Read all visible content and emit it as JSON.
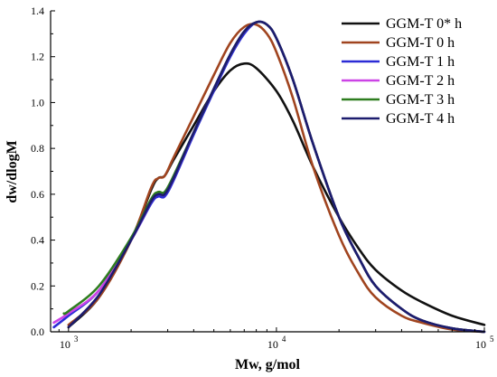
{
  "chart_data": {
    "type": "line",
    "xlabel": "Mw, g/mol",
    "ylabel": "dw/dlogM",
    "xscale": "log",
    "xlim": [
      820,
      100000
    ],
    "ylim": [
      0,
      1.4
    ],
    "x_ticks": [
      {
        "value": 1000,
        "base": "10",
        "exp": "3"
      },
      {
        "value": 10000,
        "base": "10",
        "exp": "4"
      },
      {
        "value": 100000,
        "base": "10",
        "exp": "5"
      }
    ],
    "y_ticks": [
      "0.0",
      "0.2",
      "0.4",
      "0.6",
      "0.8",
      "1.0",
      "1.2",
      "1.4"
    ],
    "grid": false,
    "legend_position": "top-right",
    "series": [
      {
        "name": "GGM-T 0* h",
        "color": "#111111",
        "points": [
          [
            1000,
            0.02
          ],
          [
            1400,
            0.15
          ],
          [
            2000,
            0.4
          ],
          [
            2500,
            0.62
          ],
          [
            2700,
            0.67
          ],
          [
            2900,
            0.68
          ],
          [
            3200,
            0.75
          ],
          [
            4000,
            0.9
          ],
          [
            5000,
            1.05
          ],
          [
            6000,
            1.14
          ],
          [
            7000,
            1.17
          ],
          [
            8000,
            1.15
          ],
          [
            10000,
            1.05
          ],
          [
            12000,
            0.92
          ],
          [
            15000,
            0.72
          ],
          [
            20000,
            0.5
          ],
          [
            25000,
            0.36
          ],
          [
            30000,
            0.27
          ],
          [
            40000,
            0.18
          ],
          [
            50000,
            0.13
          ],
          [
            70000,
            0.07
          ],
          [
            100000,
            0.03
          ]
        ]
      },
      {
        "name": "GGM-T 0 h",
        "color": "#a0441f",
        "points": [
          [
            1000,
            0.03
          ],
          [
            1400,
            0.15
          ],
          [
            2000,
            0.4
          ],
          [
            2500,
            0.63
          ],
          [
            2700,
            0.67
          ],
          [
            2900,
            0.68
          ],
          [
            3200,
            0.76
          ],
          [
            4000,
            0.94
          ],
          [
            5000,
            1.12
          ],
          [
            6000,
            1.26
          ],
          [
            7000,
            1.33
          ],
          [
            8000,
            1.34
          ],
          [
            9000,
            1.3
          ],
          [
            10000,
            1.22
          ],
          [
            12000,
            1.02
          ],
          [
            15000,
            0.72
          ],
          [
            20000,
            0.42
          ],
          [
            25000,
            0.25
          ],
          [
            30000,
            0.15
          ],
          [
            40000,
            0.07
          ],
          [
            50000,
            0.04
          ],
          [
            70000,
            0.01
          ],
          [
            100000,
            0.0
          ]
        ]
      },
      {
        "name": "GGM-T 1 h",
        "color": "#2b2bd6",
        "points": [
          [
            850,
            0.02
          ],
          [
            1000,
            0.07
          ],
          [
            1400,
            0.18
          ],
          [
            2000,
            0.4
          ],
          [
            2500,
            0.56
          ],
          [
            2700,
            0.59
          ],
          [
            2900,
            0.59
          ],
          [
            3200,
            0.66
          ],
          [
            4000,
            0.86
          ],
          [
            5000,
            1.05
          ],
          [
            6000,
            1.2
          ],
          [
            7000,
            1.3
          ],
          [
            8000,
            1.35
          ],
          [
            9000,
            1.34
          ],
          [
            10000,
            1.28
          ],
          [
            12000,
            1.1
          ],
          [
            15000,
            0.82
          ],
          [
            20000,
            0.5
          ],
          [
            25000,
            0.32
          ],
          [
            30000,
            0.2
          ],
          [
            40000,
            0.1
          ],
          [
            50000,
            0.05
          ],
          [
            70000,
            0.015
          ],
          [
            100000,
            0.0
          ]
        ]
      },
      {
        "name": "GGM-T 2 h",
        "color": "#cc44e6",
        "points": [
          [
            850,
            0.04
          ],
          [
            1000,
            0.08
          ],
          [
            1400,
            0.18
          ],
          [
            2000,
            0.4
          ],
          [
            2500,
            0.57
          ],
          [
            2700,
            0.6
          ],
          [
            2900,
            0.6
          ],
          [
            3200,
            0.67
          ],
          [
            4000,
            0.87
          ],
          [
            5000,
            1.06
          ],
          [
            6000,
            1.21
          ],
          [
            7000,
            1.31
          ],
          [
            8000,
            1.35
          ],
          [
            9000,
            1.34
          ],
          [
            10000,
            1.28
          ],
          [
            12000,
            1.1
          ],
          [
            15000,
            0.82
          ],
          [
            20000,
            0.5
          ],
          [
            25000,
            0.32
          ],
          [
            30000,
            0.2
          ],
          [
            40000,
            0.1
          ],
          [
            50000,
            0.05
          ],
          [
            70000,
            0.015
          ],
          [
            100000,
            0.0
          ]
        ]
      },
      {
        "name": "GGM-T 3 h",
        "color": "#2e7d1f",
        "points": [
          [
            950,
            0.08
          ],
          [
            1000,
            0.09
          ],
          [
            1400,
            0.2
          ],
          [
            2000,
            0.41
          ],
          [
            2500,
            0.58
          ],
          [
            2700,
            0.61
          ],
          [
            2900,
            0.61
          ],
          [
            3200,
            0.68
          ],
          [
            4000,
            0.87
          ],
          [
            5000,
            1.06
          ],
          [
            6000,
            1.21
          ],
          [
            7000,
            1.31
          ],
          [
            8000,
            1.35
          ],
          [
            9000,
            1.34
          ],
          [
            10000,
            1.28
          ],
          [
            12000,
            1.1
          ],
          [
            15000,
            0.82
          ],
          [
            20000,
            0.5
          ],
          [
            25000,
            0.32
          ],
          [
            30000,
            0.2
          ],
          [
            40000,
            0.1
          ],
          [
            50000,
            0.05
          ],
          [
            70000,
            0.015
          ],
          [
            100000,
            0.0
          ]
        ]
      },
      {
        "name": "GGM-T 4 h",
        "color": "#1c1c6e",
        "points": [
          [
            1000,
            0.02
          ],
          [
            1400,
            0.16
          ],
          [
            2000,
            0.4
          ],
          [
            2500,
            0.57
          ],
          [
            2700,
            0.6
          ],
          [
            2900,
            0.6
          ],
          [
            3200,
            0.67
          ],
          [
            4000,
            0.87
          ],
          [
            5000,
            1.06
          ],
          [
            6000,
            1.21
          ],
          [
            7000,
            1.31
          ],
          [
            8000,
            1.35
          ],
          [
            9000,
            1.34
          ],
          [
            10000,
            1.28
          ],
          [
            12000,
            1.1
          ],
          [
            15000,
            0.82
          ],
          [
            20000,
            0.5
          ],
          [
            25000,
            0.32
          ],
          [
            30000,
            0.2
          ],
          [
            40000,
            0.1
          ],
          [
            50000,
            0.05
          ],
          [
            70000,
            0.015
          ],
          [
            100000,
            0.0
          ]
        ]
      }
    ]
  }
}
